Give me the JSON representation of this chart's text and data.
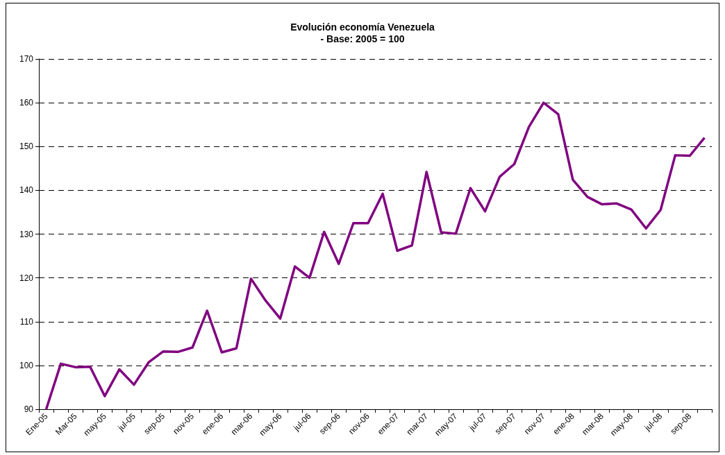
{
  "chart_data": {
    "type": "line",
    "title": "Evolución economía Venezuela",
    "subtitle": "- Base: 2005 = 100",
    "categories": [
      "Ene-05",
      null,
      "Mar-05",
      null,
      "may-05",
      null,
      "jul-05",
      null,
      "sep-05",
      null,
      "nov-05",
      null,
      "ene-06",
      null,
      "mar-06",
      null,
      "may-06",
      null,
      "jul-06",
      null,
      "sep-06",
      null,
      "nov-06",
      null,
      "ene-07",
      null,
      "mar-07",
      null,
      "may-07",
      null,
      "jul-07",
      null,
      "sep-07",
      null,
      "nov-07",
      null,
      "ene-08",
      null,
      "mar-08",
      null,
      "may-08",
      null,
      "jul-08",
      null,
      "sep-08",
      null
    ],
    "series": [
      {
        "color": "#800080",
        "values": [
          90,
          100.4,
          99.6,
          99.7,
          93,
          99.1,
          95.6,
          100.7,
          103.2,
          103.1,
          104.1,
          112.5,
          103,
          103.9,
          119.8,
          114.8,
          110.7,
          122.6,
          120,
          130.5,
          123.2,
          132.5,
          132.5,
          139.2,
          126.2,
          127.4,
          144.2,
          130.4,
          130.1,
          140.5,
          135.2,
          143.1,
          146,
          154.5,
          160,
          157.4,
          142.4,
          138.5,
          136.8,
          137,
          135.6,
          131.3,
          135.5,
          148,
          147.9,
          152
        ]
      }
    ],
    "ylim": [
      90,
      170
    ],
    "yticks": [
      90,
      100,
      110,
      120,
      130,
      140,
      150,
      160,
      170
    ],
    "grid": "y",
    "marker": "none",
    "line_style": "solid"
  }
}
